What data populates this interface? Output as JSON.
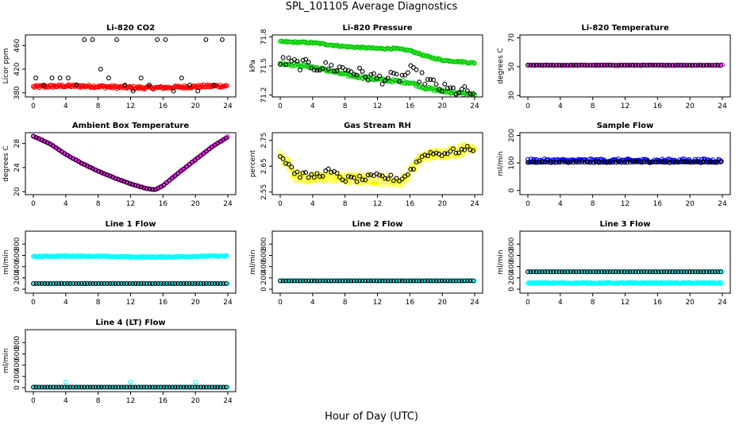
{
  "figure_title": "SPL_101105  Average Diagnostics",
  "x_caption": "Hour of Day (UTC)",
  "colors": {
    "black": "#000000",
    "red": "#ff0000",
    "green": "#00cc00",
    "magenta": "#ff00ff",
    "yellow": "#ffff00",
    "blue": "#0000ff",
    "cyan": "#00ffff"
  },
  "chart_data": [
    {
      "id": "co2",
      "type": "scatter",
      "title": "Li-820 CO2",
      "ylabel": "Licor ppm",
      "xlim": [
        0,
        24
      ],
      "ylim": [
        373,
        478
      ],
      "xticks": [
        0,
        4,
        8,
        12,
        16,
        20,
        24
      ],
      "yticks": [
        380,
        420,
        460
      ],
      "series": [
        {
          "name": "band",
          "color": "#ff0000",
          "gen": "band",
          "base": 390,
          "amp": 1.5,
          "noise": 2.5
        },
        {
          "name": "avg",
          "color": "#000000",
          "gen": "levels",
          "levels": [
            383,
            393,
            405,
            420,
            470
          ],
          "noise": 0
        }
      ]
    },
    {
      "id": "pressure",
      "type": "scatter",
      "title": "Li-820 Pressure",
      "ylabel": "kPa",
      "xlim": [
        0,
        24
      ],
      "ylim": [
        71.18,
        71.82
      ],
      "xticks": [
        0,
        4,
        8,
        12,
        16,
        20,
        24
      ],
      "yticks": [
        71.2,
        71.5,
        71.8
      ],
      "series": [
        {
          "name": "upper",
          "color": "#00cc00",
          "gen": "curve",
          "knots": [
            [
              0,
              71.75
            ],
            [
              4,
              71.74
            ],
            [
              8,
              71.7
            ],
            [
              12,
              71.68
            ],
            [
              14,
              71.68
            ],
            [
              16,
              71.66
            ],
            [
              18,
              71.6
            ],
            [
              20,
              71.56
            ],
            [
              24,
              71.53
            ]
          ],
          "noise": 0.008
        },
        {
          "name": "lower",
          "color": "#00cc00",
          "gen": "curve",
          "knots": [
            [
              0,
              71.53
            ],
            [
              4,
              71.49
            ],
            [
              8,
              71.41
            ],
            [
              12,
              71.36
            ],
            [
              16,
              71.33
            ],
            [
              18,
              71.27
            ],
            [
              20,
              71.24
            ],
            [
              24,
              71.2
            ]
          ],
          "noise": 0.015
        },
        {
          "name": "avg",
          "color": "#000000",
          "gen": "curve",
          "knots": [
            [
              0,
              71.55
            ],
            [
              2,
              71.52
            ],
            [
              4,
              71.5
            ],
            [
              8,
              71.47
            ],
            [
              12,
              71.37
            ],
            [
              15,
              71.38
            ],
            [
              16,
              71.45
            ],
            [
              18,
              71.35
            ],
            [
              20,
              71.26
            ],
            [
              24,
              71.22
            ]
          ],
          "noise": 0.06,
          "step": 0.35
        }
      ]
    },
    {
      "id": "temp",
      "type": "scatter",
      "title": "Li-820 Temperature",
      "ylabel": "degrees C",
      "xlim": [
        0,
        24
      ],
      "ylim": [
        29,
        72
      ],
      "xticks": [
        0,
        4,
        8,
        12,
        16,
        20,
        24
      ],
      "yticks": [
        30,
        50,
        70
      ],
      "series": [
        {
          "name": "samples",
          "color": "#ff00ff",
          "gen": "curve",
          "knots": [
            [
              0,
              51
            ],
            [
              24,
              51
            ]
          ],
          "noise": 0.3,
          "step": 0.2
        },
        {
          "name": "avg",
          "color": "#000000",
          "gen": "curve",
          "knots": [
            [
              0,
              51
            ],
            [
              24,
              51
            ]
          ],
          "noise": 0,
          "step": 0.35
        }
      ]
    },
    {
      "id": "ambient",
      "type": "scatter",
      "title": "Ambient Box Temperature",
      "ylabel": "degrees C",
      "xlim": [
        0,
        24
      ],
      "ylim": [
        19.5,
        29.8
      ],
      "xticks": [
        0,
        4,
        8,
        12,
        16,
        20,
        24
      ],
      "yticks": [
        20,
        24,
        28
      ],
      "series": [
        {
          "name": "samples",
          "color": "#ff00ff",
          "gen": "curve",
          "knots": [
            [
              0,
              29.2
            ],
            [
              2,
              28
            ],
            [
              4,
              26.2
            ],
            [
              6,
              24.7
            ],
            [
              8,
              23.4
            ],
            [
              10,
              22.3
            ],
            [
              12,
              21.3
            ],
            [
              14,
              20.5
            ],
            [
              15,
              20.3
            ],
            [
              16,
              21
            ],
            [
              18,
              23.2
            ],
            [
              20,
              25.3
            ],
            [
              22,
              27.4
            ],
            [
              24,
              29.1
            ]
          ],
          "noise": 0.05,
          "step": 0.15
        },
        {
          "name": "avg",
          "color": "#000000",
          "gen": "curve",
          "knots": [
            [
              0,
              29.2
            ],
            [
              2,
              28
            ],
            [
              4,
              26.2
            ],
            [
              6,
              24.7
            ],
            [
              8,
              23.4
            ],
            [
              10,
              22.3
            ],
            [
              12,
              21.3
            ],
            [
              14,
              20.5
            ],
            [
              15,
              20.3
            ],
            [
              16,
              21
            ],
            [
              18,
              23.2
            ],
            [
              20,
              25.3
            ],
            [
              22,
              27.4
            ],
            [
              24,
              29.1
            ]
          ],
          "noise": 0,
          "step": 0.35
        }
      ]
    },
    {
      "id": "rh",
      "type": "scatter",
      "title": "Gas Stream RH",
      "ylabel": "percent",
      "xlim": [
        0,
        24
      ],
      "ylim": [
        2.54,
        2.78
      ],
      "xticks": [
        0,
        4,
        8,
        12,
        16,
        20,
        24
      ],
      "yticks": [
        2.55,
        2.65,
        2.75
      ],
      "series": [
        {
          "name": "samples",
          "color": "#ffff00",
          "gen": "curve",
          "knots": [
            [
              0,
              2.69
            ],
            [
              1,
              2.66
            ],
            [
              2,
              2.61
            ],
            [
              4,
              2.6
            ],
            [
              6,
              2.61
            ],
            [
              8,
              2.6
            ],
            [
              10,
              2.6
            ],
            [
              12,
              2.6
            ],
            [
              15,
              2.59
            ],
            [
              16,
              2.63
            ],
            [
              17,
              2.67
            ],
            [
              18,
              2.69
            ],
            [
              20,
              2.7
            ],
            [
              22,
              2.71
            ],
            [
              24,
              2.73
            ]
          ],
          "noise": 0.02,
          "step": 0.1
        },
        {
          "name": "avg",
          "color": "#000000",
          "gen": "curve",
          "knots": [
            [
              0,
              2.69
            ],
            [
              1,
              2.66
            ],
            [
              2,
              2.62
            ],
            [
              4,
              2.61
            ],
            [
              6,
              2.63
            ],
            [
              8,
              2.6
            ],
            [
              10,
              2.6
            ],
            [
              12,
              2.61
            ],
            [
              15,
              2.6
            ],
            [
              16,
              2.63
            ],
            [
              17,
              2.67
            ],
            [
              18,
              2.7
            ],
            [
              20,
              2.7
            ],
            [
              22,
              2.71
            ],
            [
              24,
              2.72
            ]
          ],
          "noise": 0.012,
          "step": 0.35
        }
      ]
    },
    {
      "id": "sampleflow",
      "type": "scatter",
      "title": "Sample Flow",
      "ylabel": "ml/min",
      "xlim": [
        0,
        24
      ],
      "ylim": [
        -15,
        210
      ],
      "xticks": [
        0,
        4,
        8,
        12,
        16,
        20,
        24
      ],
      "yticks": [
        0,
        100,
        200
      ],
      "series": [
        {
          "name": "samples",
          "color": "#0000ff",
          "gen": "band",
          "base": 108,
          "amp": 0,
          "noise": 7
        },
        {
          "name": "avg",
          "color": "#000000",
          "gen": "curve",
          "knots": [
            [
              0,
              103
            ],
            [
              24,
              103
            ]
          ],
          "noise": 1,
          "step": 0.35
        }
      ]
    },
    {
      "id": "line1",
      "type": "scatter",
      "title": "Line 1 Flow",
      "ylabel": "ml/min",
      "xlim": [
        0,
        24
      ],
      "ylim": [
        -70,
        1030
      ],
      "xticks": [
        0,
        4,
        8,
        12,
        16,
        20,
        24
      ],
      "yticks": [
        0,
        200,
        400,
        600,
        800
      ],
      "series": [
        {
          "name": "upper",
          "color": "#00ffff",
          "gen": "band",
          "base": 580,
          "amp": 8,
          "noise": 10
        },
        {
          "name": "lower",
          "color": "#00ffff",
          "gen": "curve",
          "knots": [
            [
              0,
              100
            ],
            [
              24,
              100
            ]
          ],
          "noise": 2,
          "step": 0.2
        },
        {
          "name": "avg",
          "color": "#000000",
          "gen": "curve",
          "knots": [
            [
              0,
              100
            ],
            [
              24,
              100
            ]
          ],
          "noise": 0,
          "step": 0.35
        }
      ]
    },
    {
      "id": "line2",
      "type": "scatter",
      "title": "Line 2 Flow",
      "ylabel": "ml/min",
      "xlim": [
        0,
        24
      ],
      "ylim": [
        -70,
        1030
      ],
      "xticks": [
        0,
        4,
        8,
        12,
        16,
        20,
        24
      ],
      "yticks": [
        0,
        200,
        400,
        600,
        800
      ],
      "series": [
        {
          "name": "samples",
          "color": "#00ffff",
          "gen": "curve",
          "knots": [
            [
              0,
              150
            ],
            [
              24,
              150
            ]
          ],
          "noise": 3,
          "step": 0.2
        },
        {
          "name": "avg",
          "color": "#000000",
          "gen": "curve",
          "knots": [
            [
              0,
              150
            ],
            [
              24,
              150
            ]
          ],
          "noise": 0,
          "step": 0.35
        }
      ]
    },
    {
      "id": "line3",
      "type": "scatter",
      "title": "Line 3 Flow",
      "ylabel": "ml/min",
      "xlim": [
        0,
        24
      ],
      "ylim": [
        -70,
        1030
      ],
      "xticks": [
        0,
        4,
        8,
        12,
        16,
        20,
        24
      ],
      "yticks": [
        0,
        200,
        400,
        600,
        800
      ],
      "series": [
        {
          "name": "lower",
          "color": "#00ffff",
          "gen": "band",
          "base": 110,
          "amp": 0,
          "noise": 12
        },
        {
          "name": "upper",
          "color": "#00ffff",
          "gen": "curve",
          "knots": [
            [
              0,
              310
            ],
            [
              24,
              310
            ]
          ],
          "noise": 2,
          "step": 0.2
        },
        {
          "name": "avg",
          "color": "#000000",
          "gen": "curve",
          "knots": [
            [
              0,
              310
            ],
            [
              24,
              310
            ]
          ],
          "noise": 0,
          "step": 0.35
        }
      ]
    },
    {
      "id": "line4",
      "type": "scatter",
      "title": "Line 4 (LT) Flow",
      "ylabel": "ml/min",
      "xlim": [
        0,
        24
      ],
      "ylim": [
        -70,
        1030
      ],
      "xticks": [
        0,
        4,
        8,
        12,
        16,
        20,
        24
      ],
      "yticks": [
        0,
        200,
        400,
        600,
        800
      ],
      "series": [
        {
          "name": "samples",
          "color": "#00ffff",
          "gen": "curve",
          "knots": [
            [
              0,
              10
            ],
            [
              24,
              10
            ]
          ],
          "noise": 1,
          "step": 0.2
        },
        {
          "name": "spikes",
          "color": "#00ffff",
          "gen": "points",
          "points": [
            [
              4,
              100
            ],
            [
              12,
              100
            ],
            [
              20,
              100
            ],
            [
              0.2,
              20
            ]
          ]
        },
        {
          "name": "avg",
          "color": "#000000",
          "gen": "curve",
          "knots": [
            [
              0,
              10
            ],
            [
              24,
              10
            ]
          ],
          "noise": 0,
          "step": 0.35
        }
      ]
    }
  ]
}
